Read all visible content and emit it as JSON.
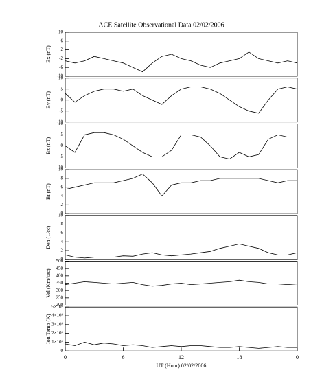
{
  "chart_data": [
    {
      "type": "line",
      "title": "ACE Satellite Observational Data   02/02/2006",
      "ylabel": "Bx (nT)",
      "x": [
        0,
        1,
        2,
        3,
        4,
        5,
        6,
        7,
        8,
        9,
        10,
        11,
        12,
        13,
        14,
        15,
        16,
        17,
        18,
        19,
        20,
        21,
        22,
        23,
        24
      ],
      "values": [
        -3,
        -4,
        -3,
        -1,
        -2,
        -3,
        -4,
        -6,
        -8,
        -4,
        -1,
        0,
        -2,
        -3,
        -5,
        -6,
        -4,
        -3,
        -2,
        1,
        -2,
        -3,
        -4,
        -3,
        -4
      ],
      "color": "#000000",
      "xlim": [
        0,
        24
      ],
      "ylim": [
        -10,
        10
      ],
      "yticks": [
        -10,
        -6,
        -2,
        2,
        6,
        10
      ]
    },
    {
      "type": "line",
      "ylabel": "By (nT)",
      "x": [
        0,
        1,
        2,
        3,
        4,
        5,
        6,
        7,
        8,
        9,
        10,
        11,
        12,
        13,
        14,
        15,
        16,
        17,
        18,
        19,
        20,
        21,
        22,
        23,
        24
      ],
      "values": [
        3,
        -1,
        2,
        4,
        5,
        5,
        4,
        5,
        2,
        0,
        -2,
        2,
        5,
        6,
        6,
        5,
        3,
        0,
        -3,
        -5,
        -6,
        0,
        5,
        6,
        5
      ],
      "color": "#000000",
      "xlim": [
        0,
        24
      ],
      "ylim": [
        -10,
        10
      ],
      "yticks": [
        -10,
        -5,
        0,
        5,
        10
      ]
    },
    {
      "type": "line",
      "ylabel": "Bz (nT)",
      "x": [
        0,
        1,
        2,
        3,
        4,
        5,
        6,
        7,
        8,
        9,
        10,
        11,
        12,
        13,
        14,
        15,
        16,
        17,
        18,
        19,
        20,
        21,
        22,
        23,
        24
      ],
      "values": [
        0,
        -3,
        5,
        6,
        6,
        5,
        3,
        0,
        -3,
        -5,
        -5,
        -2,
        5,
        5,
        4,
        0,
        -5,
        -6,
        -3,
        -5,
        -4,
        3,
        5,
        4,
        4
      ],
      "color": "#000000",
      "xlim": [
        0,
        24
      ],
      "ylim": [
        -10,
        10
      ],
      "yticks": [
        -10,
        -5,
        0,
        5,
        10
      ]
    },
    {
      "type": "line",
      "ylabel": "Bt (nT)",
      "x": [
        0,
        1,
        2,
        3,
        4,
        5,
        6,
        7,
        8,
        9,
        10,
        11,
        12,
        13,
        14,
        15,
        16,
        17,
        18,
        19,
        20,
        21,
        22,
        23,
        24
      ],
      "values": [
        5.5,
        6,
        6.5,
        7,
        7,
        7,
        7.5,
        8,
        9,
        7,
        4,
        6.5,
        7,
        7,
        7.5,
        7.5,
        8,
        8,
        8,
        8,
        8,
        7.5,
        7,
        7.5,
        7.5
      ],
      "color": "#000000",
      "xlim": [
        0,
        24
      ],
      "ylim": [
        0,
        10
      ],
      "yticks": [
        0,
        2,
        4,
        6,
        8,
        10
      ]
    },
    {
      "type": "line",
      "ylabel": "Den (1/cc)",
      "x": [
        0,
        1,
        2,
        3,
        4,
        5,
        6,
        7,
        8,
        9,
        10,
        11,
        12,
        13,
        14,
        15,
        16,
        17,
        18,
        19,
        20,
        21,
        22,
        23,
        24
      ],
      "values": [
        1,
        0.5,
        0.3,
        0.5,
        0.5,
        0.5,
        0.8,
        0.7,
        1.2,
        1.5,
        1,
        0.8,
        1,
        1.2,
        1.5,
        1.8,
        2.5,
        3,
        3.5,
        3,
        2.5,
        1.5,
        1,
        1,
        1.5
      ],
      "color": "#000000",
      "xlim": [
        0,
        24
      ],
      "ylim": [
        0,
        10
      ],
      "yticks": [
        0,
        2,
        4,
        6,
        8,
        10
      ]
    },
    {
      "type": "line",
      "ylabel": "Vel (Km/sec)",
      "x": [
        0,
        1,
        2,
        3,
        4,
        5,
        6,
        7,
        8,
        9,
        10,
        11,
        12,
        13,
        14,
        15,
        16,
        17,
        18,
        19,
        20,
        21,
        22,
        23,
        24
      ],
      "values": [
        340,
        350,
        360,
        355,
        350,
        345,
        350,
        355,
        340,
        330,
        335,
        345,
        350,
        340,
        345,
        350,
        355,
        360,
        370,
        360,
        355,
        345,
        345,
        340,
        345
      ],
      "color": "#000000",
      "xlim": [
        0,
        24
      ],
      "ylim": [
        200,
        500
      ],
      "yticks": [
        200,
        250,
        300,
        350,
        400,
        450,
        500
      ]
    },
    {
      "type": "line",
      "ylabel": "Ion Temp (K)",
      "xlabel": "UT (Hour)   02/02/2006",
      "x": [
        0,
        1,
        2,
        3,
        4,
        5,
        6,
        7,
        8,
        9,
        10,
        11,
        12,
        13,
        14,
        15,
        16,
        17,
        18,
        19,
        20,
        21,
        22,
        23,
        24
      ],
      "values": [
        80000,
        60000,
        100000,
        70000,
        90000,
        80000,
        60000,
        70000,
        60000,
        40000,
        50000,
        60000,
        50000,
        60000,
        60000,
        50000,
        40000,
        40000,
        50000,
        40000,
        30000,
        40000,
        50000,
        40000,
        40000
      ],
      "color": "#000000",
      "xlim": [
        0,
        24
      ],
      "ylim": [
        0,
        500000
      ],
      "yticks": [
        0,
        {
          "value": 100000,
          "label": "1×10⁵"
        },
        {
          "value": 200000,
          "label": "2×10⁵"
        },
        {
          "value": 300000,
          "label": "3×10⁵"
        },
        {
          "value": 400000,
          "label": "4×10⁵"
        },
        {
          "value": 500000,
          "label": "5×10⁵"
        }
      ],
      "xticks": [
        0,
        6,
        12,
        18,
        {
          "value": 24,
          "label": "0"
        }
      ]
    }
  ]
}
